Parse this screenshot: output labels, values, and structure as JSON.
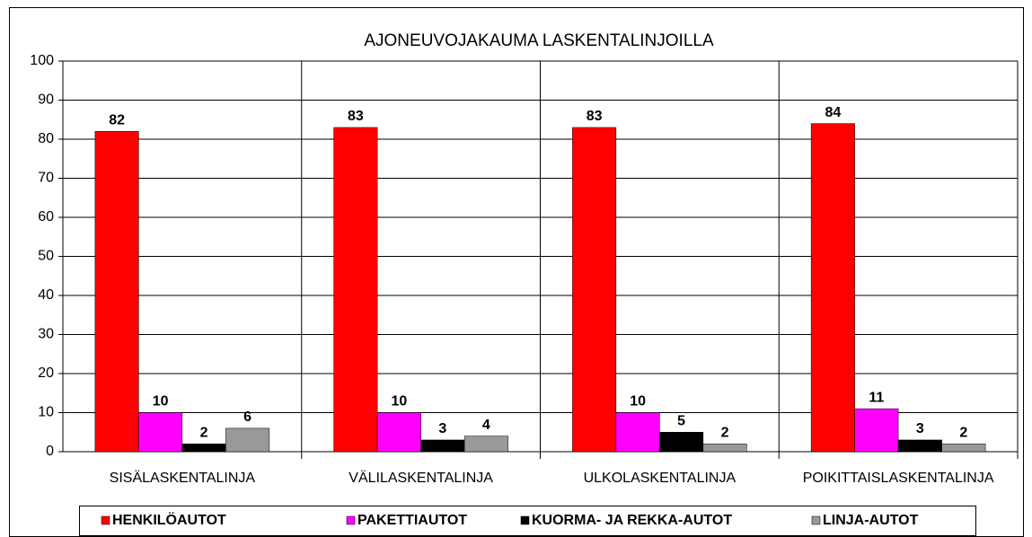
{
  "chart_data": {
    "type": "bar",
    "title": "AJONEUVOJAKAUMA LASKENTALINJOILLA",
    "categories": [
      "SISÄLASKENTALINJA",
      "VÄLILASKENTALINJA",
      "ULKOLASKENTALINJA",
      "POIKITTAISLASKENTALINJA"
    ],
    "series": [
      {
        "name": "HENKILÖAUTOT",
        "color": "#ff0000",
        "values": [
          82,
          83,
          83,
          84
        ]
      },
      {
        "name": "PAKETTIAUTOT",
        "color": "#ff00ff",
        "values": [
          10,
          10,
          10,
          11
        ]
      },
      {
        "name": "KUORMA- JA REKKA-AUTOT",
        "color": "#000000",
        "values": [
          2,
          3,
          5,
          3
        ]
      },
      {
        "name": "LINJA-AUTOT",
        "color": "#999999",
        "values": [
          6,
          4,
          2,
          2
        ]
      }
    ],
    "ylim": [
      0,
      100
    ],
    "yticks": [
      0,
      10,
      20,
      30,
      40,
      50,
      60,
      70,
      80,
      90,
      100
    ],
    "grid": true,
    "legend": "bottom"
  }
}
